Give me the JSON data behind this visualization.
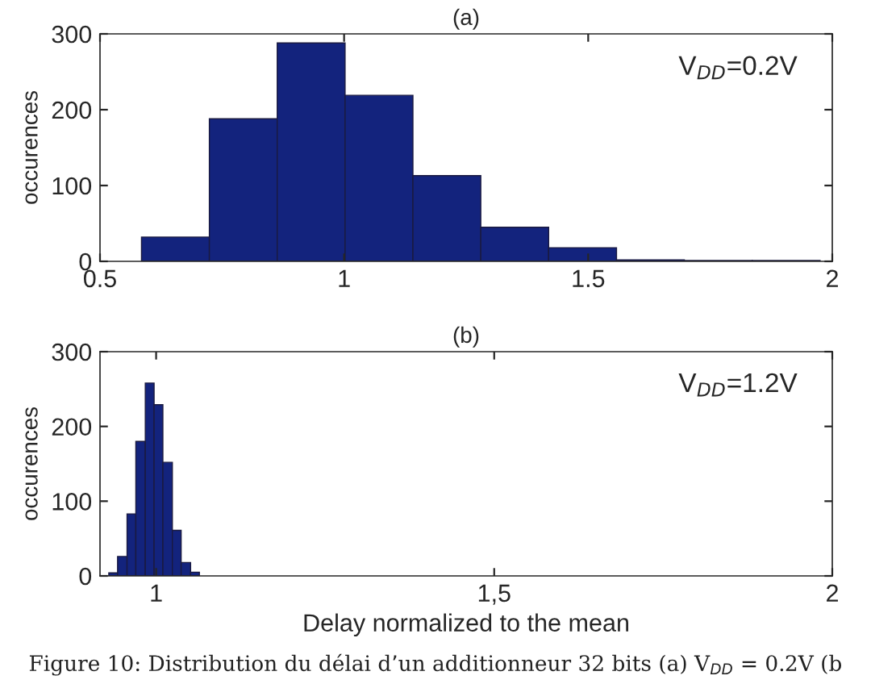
{
  "chart_data": [
    {
      "type": "histogram",
      "title": "(a)",
      "ylabel": "occurences",
      "bins": [
        0.585,
        0.724,
        0.863,
        1.002,
        1.141,
        1.28,
        1.419,
        1.558,
        1.697,
        1.836,
        1.975
      ],
      "values": [
        32,
        188,
        288,
        219,
        113,
        45,
        18,
        2,
        1,
        1
      ],
      "color": "#13237d",
      "xlim": [
        0.5,
        2
      ],
      "xticks": [
        0.5,
        1,
        1.5,
        2
      ],
      "ylim": [
        0,
        300
      ],
      "yticks": [
        0,
        100,
        200,
        300
      ],
      "grid": false,
      "annotations": [
        "V$_{DD}$=0.2V"
      ]
    },
    {
      "type": "histogram",
      "title": "(b)",
      "ylabel": "occurences",
      "xlabel": "Delay normalized to the mean",
      "bins": [
        0.93,
        0.943,
        0.957,
        0.97,
        0.984,
        0.997,
        1.01,
        1.024,
        1.037,
        1.051,
        1.064
      ],
      "values": [
        4,
        26,
        83,
        180,
        258,
        229,
        152,
        61,
        18,
        5
      ],
      "color": "#13237d",
      "xlim": [
        0.917,
        2
      ],
      "xticks": [
        1,
        {
          "value": 1.5,
          "label": "1,5"
        },
        2
      ],
      "ylim": [
        0,
        300
      ],
      "yticks": [
        0,
        100,
        200,
        300
      ],
      "grid": false,
      "annotations": [
        "V$_{DD}$=1.2V",
        "Figure 10: Distribution du délai d’un additionneur 32 bits (a) V$_{DD}$ = 0.2V (b"
      ]
    }
  ]
}
